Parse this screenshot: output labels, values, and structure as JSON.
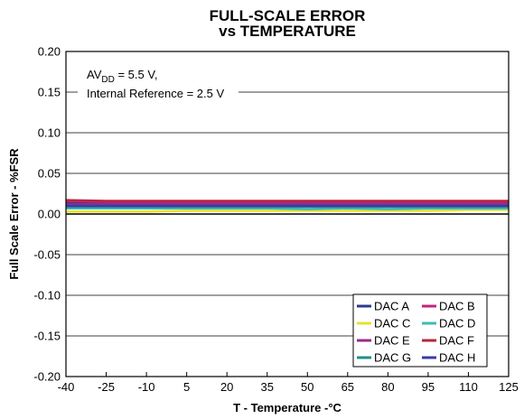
{
  "chart_data": {
    "type": "line",
    "title_line1": "FULL-SCALE ERROR",
    "title_line2": "vs TEMPERATURE",
    "xlabel": "T - Temperature -°C",
    "ylabel": "Full Scale Error - %FSR",
    "xlim": [
      -40,
      125
    ],
    "ylim": [
      -0.2,
      0.2
    ],
    "x_ticks": [
      -40,
      -25,
      -10,
      5,
      20,
      35,
      50,
      65,
      80,
      95,
      110,
      125
    ],
    "y_ticks": [
      0.2,
      0.15,
      0.1,
      0.05,
      0.0,
      -0.05,
      -0.1,
      -0.15,
      -0.2
    ],
    "y_tick_labels": [
      "0.20",
      "0.15",
      "0.10",
      "0.05",
      "0.00",
      "-0.05",
      "-0.10",
      "-0.15",
      "-0.20"
    ],
    "grid": true,
    "annotation": {
      "line1_prefix": "AV",
      "line1_sub": "DD",
      "line1_suffix": " = 5.5 V,",
      "line2": "Internal Reference = 2.5 V"
    },
    "legend_position": "bottom-right",
    "x": [
      -40,
      -25,
      -10,
      5,
      20,
      35,
      50,
      65,
      80,
      95,
      110,
      125
    ],
    "series": [
      {
        "name": "DAC A",
        "color": "#2b3a8f",
        "values": [
          0.014,
          0.013,
          0.013,
          0.013,
          0.013,
          0.013,
          0.013,
          0.013,
          0.013,
          0.013,
          0.013,
          0.013
        ]
      },
      {
        "name": "DAC B",
        "color": "#c0267d",
        "values": [
          0.016,
          0.015,
          0.015,
          0.015,
          0.015,
          0.015,
          0.015,
          0.015,
          0.015,
          0.015,
          0.015,
          0.015
        ]
      },
      {
        "name": "DAC C",
        "color": "#e8e033",
        "values": [
          0.003,
          0.003,
          0.003,
          0.004,
          0.004,
          0.004,
          0.004,
          0.004,
          0.004,
          0.004,
          0.005,
          0.005
        ]
      },
      {
        "name": "DAC D",
        "color": "#3dbdb6",
        "values": [
          0.007,
          0.007,
          0.007,
          0.007,
          0.007,
          0.007,
          0.006,
          0.007,
          0.006,
          0.007,
          0.007,
          0.007
        ]
      },
      {
        "name": "DAC E",
        "color": "#9b2a86",
        "values": [
          0.012,
          0.012,
          0.012,
          0.012,
          0.012,
          0.012,
          0.012,
          0.012,
          0.012,
          0.012,
          0.012,
          0.012
        ]
      },
      {
        "name": "DAC F",
        "color": "#b8253e",
        "values": [
          0.017,
          0.016,
          0.016,
          0.016,
          0.016,
          0.016,
          0.016,
          0.016,
          0.016,
          0.016,
          0.016,
          0.016
        ]
      },
      {
        "name": "DAC G",
        "color": "#1f8f8a",
        "values": [
          0.009,
          0.009,
          0.009,
          0.009,
          0.009,
          0.009,
          0.009,
          0.009,
          0.009,
          0.009,
          0.009,
          0.009
        ]
      },
      {
        "name": "DAC H",
        "color": "#3a3aa8",
        "values": [
          0.01,
          0.01,
          0.01,
          0.01,
          0.01,
          0.01,
          0.01,
          0.01,
          0.01,
          0.01,
          0.01,
          0.01
        ]
      }
    ]
  }
}
